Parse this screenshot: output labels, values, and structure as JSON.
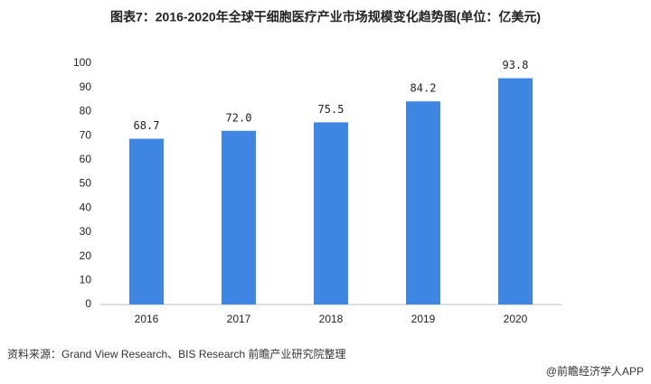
{
  "chart_data": {
    "type": "bar",
    "title": "图表7：2016-2020年全球干细胞医疗产业市场规模变化趋势图(单位：亿美元)",
    "categories": [
      "2016",
      "2017",
      "2018",
      "2019",
      "2020"
    ],
    "values": [
      68.7,
      72.0,
      75.5,
      84.2,
      93.8
    ],
    "value_labels": [
      "68.7",
      "72.0",
      "75.5",
      "84.2",
      "93.8"
    ],
    "color": "#3f86e2",
    "ylim": [
      0,
      100
    ],
    "yticks": [
      0,
      10,
      20,
      30,
      40,
      50,
      60,
      70,
      80,
      90,
      100
    ],
    "grid": false,
    "source": "资料来源：Grand View Research、BIS Research 前瞻产业研究院整理",
    "footer": "@前瞻经济学人APP"
  }
}
